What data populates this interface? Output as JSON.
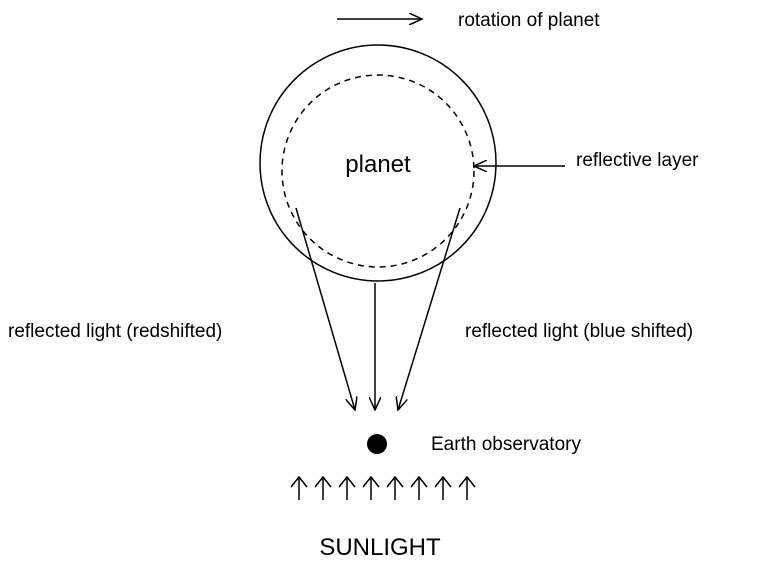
{
  "labels": {
    "rotation": "rotation of planet",
    "planet": "planet",
    "layer": "reflective layer",
    "red": "reflected light (redshifted)",
    "blue": "reflected light (blue shifted)",
    "earth": "Earth observatory",
    "sun": "SUNLIGHT"
  }
}
